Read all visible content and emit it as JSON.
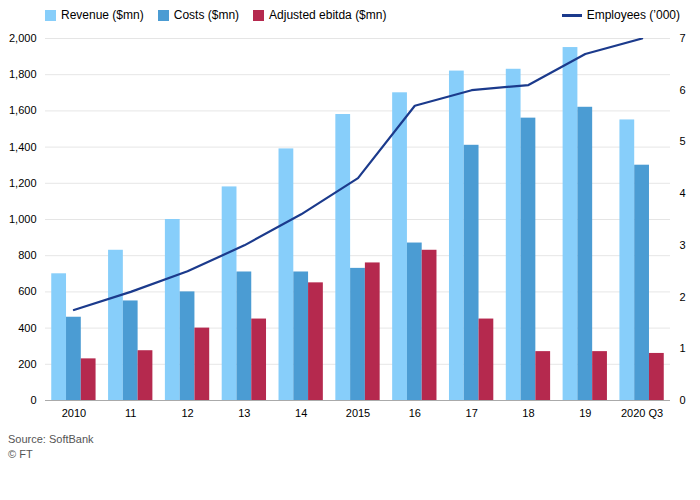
{
  "chart_data": {
    "type": "bar",
    "categories": [
      "2010",
      "11",
      "12",
      "13",
      "14",
      "2015",
      "16",
      "17",
      "18",
      "19",
      "2020 Q3"
    ],
    "series": [
      {
        "name": "Revenue ($mn)",
        "type": "bar",
        "color": "#87CEFA",
        "values": [
          700,
          830,
          1000,
          1180,
          1390,
          1580,
          1700,
          1820,
          1830,
          1950,
          1550
        ]
      },
      {
        "name": "Costs ($mn)",
        "type": "bar",
        "color": "#4B9CD3",
        "values": [
          460,
          550,
          600,
          710,
          710,
          730,
          870,
          1410,
          1560,
          1620,
          1300
        ]
      },
      {
        "name": "Adjusted ebitda ($mn)",
        "type": "bar",
        "color": "#B5294E",
        "values": [
          230,
          275,
          400,
          450,
          650,
          760,
          830,
          450,
          270,
          270,
          260
        ]
      },
      {
        "name": "Employees (’000)",
        "type": "line",
        "axis": "y2",
        "color": "#1B3A8C",
        "line_style": "solid",
        "values": [
          1.75,
          2.1,
          2.5,
          3.0,
          3.6,
          4.3,
          5.7,
          6.0,
          6.1,
          6.7,
          7.0
        ]
      }
    ],
    "ylim": [
      0,
      2000
    ],
    "yticks": [
      0,
      200,
      400,
      600,
      800,
      {
        "value": 1000,
        "label": "1,000"
      },
      {
        "value": 1200,
        "label": "1,200"
      },
      {
        "value": 1400,
        "label": "1,400"
      },
      {
        "value": 1600,
        "label": "1,600"
      },
      {
        "value": 1800,
        "label": "1,800"
      },
      {
        "value": 2000,
        "label": "2,000"
      }
    ],
    "y2lim": [
      0,
      7
    ],
    "y2ticks": [
      0,
      1,
      2,
      3,
      4,
      5,
      6,
      7
    ],
    "grid": true,
    "legend": "top",
    "caption": "Source: SoftBank\n© FT"
  }
}
